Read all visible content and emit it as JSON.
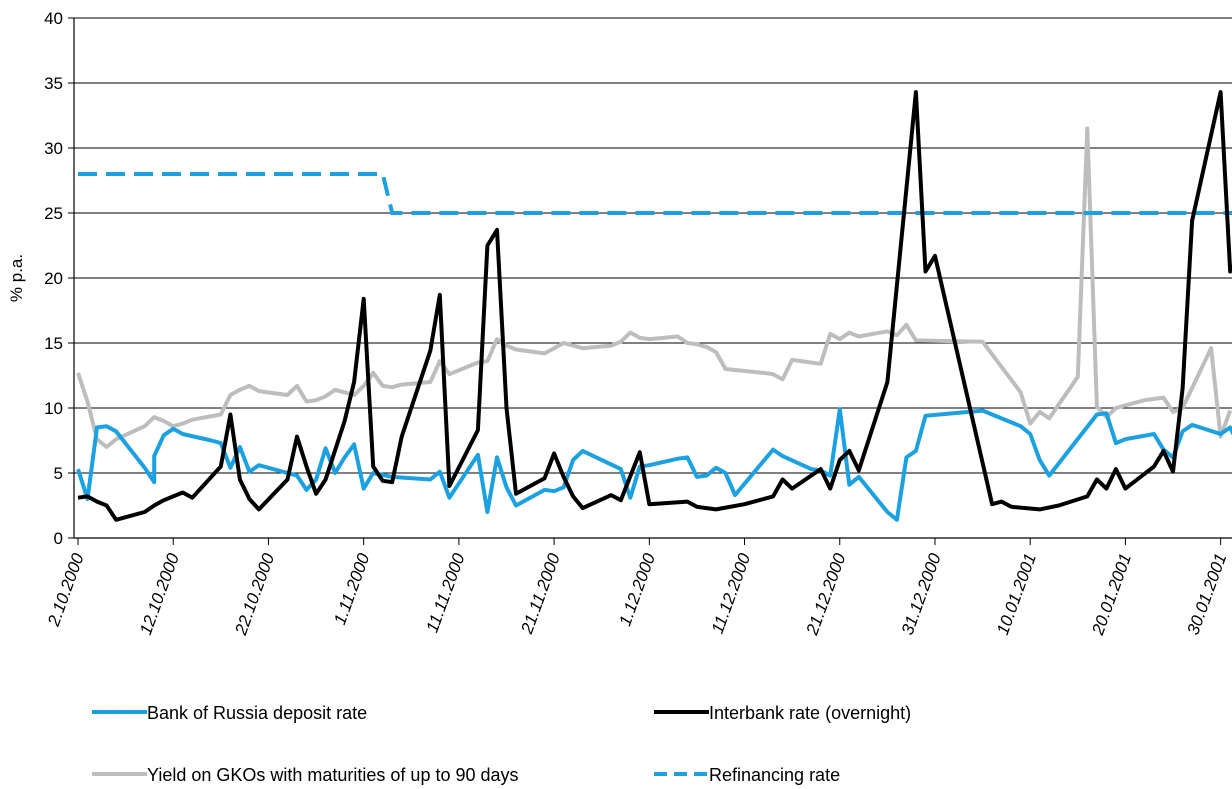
{
  "chart_data": {
    "type": "line",
    "title": "",
    "xlabel": "",
    "ylabel": "% p.a.",
    "ylim": [
      0,
      40
    ],
    "yticks": [
      0,
      5,
      10,
      15,
      20,
      25,
      30,
      35,
      40
    ],
    "xlim": [
      "2.10.2000",
      "31.01.2001"
    ],
    "xticks": [
      {
        "x": "2.10.2000",
        "label": "2.10.2000"
      },
      {
        "x": "12.10.2000",
        "label": "12.10.2000"
      },
      {
        "x": "22.10.2000",
        "label": "22.10.2000"
      },
      {
        "x": "1.11.2000",
        "label": "1.11.2000"
      },
      {
        "x": "11.11.2000",
        "label": "11.11.2000"
      },
      {
        "x": "21.11.2000",
        "label": "21.11.2000"
      },
      {
        "x": "1.12.2000",
        "label": "1.12.2000"
      },
      {
        "x": "11.12.2000",
        "label": "11.12.2000"
      },
      {
        "x": "21.12.2000",
        "label": "21.12.2000"
      },
      {
        "x": "31.12.2000",
        "label": "31.12.2000"
      },
      {
        "x": "10.01.2001",
        "label": "10.01.2001"
      },
      {
        "x": "20.01.2001",
        "label": "20.01.2001"
      },
      {
        "x": "30.01.2001",
        "label": "30.01.2001"
      }
    ],
    "grid": "horizontal",
    "legend": "bottom",
    "series": [
      {
        "name": "Bank of Russia deposit rate",
        "color": "#1ba1e2",
        "style": "solid",
        "points": [
          [
            "2.10.2000",
            5.3
          ],
          [
            "3.10.2000",
            3.0
          ],
          [
            "4.10.2000",
            8.5
          ],
          [
            "5.10.2000",
            8.6
          ],
          [
            "6.10.2000",
            8.2
          ],
          [
            "9.10.2000",
            5.4
          ],
          [
            "10.10.2000",
            4.3
          ],
          [
            "10.10.2000",
            6.3
          ],
          [
            "11.10.2000",
            7.9
          ],
          [
            "12.10.2000",
            8.4
          ],
          [
            "13.10.2000",
            8.0
          ],
          [
            "16.10.2000",
            7.5
          ],
          [
            "17.10.2000",
            7.3
          ],
          [
            "18.10.2000",
            5.4
          ],
          [
            "19.10.2000",
            7.0
          ],
          [
            "20.10.2000",
            5.1
          ],
          [
            "21.10.2000",
            5.6
          ],
          [
            "24.10.2000",
            5.0
          ],
          [
            "25.10.2000",
            4.8
          ],
          [
            "26.10.2000",
            3.7
          ],
          [
            "27.10.2000",
            4.5
          ],
          [
            "28.10.2000",
            6.9
          ],
          [
            "29.10.2000",
            5.0
          ],
          [
            "30.10.2000",
            6.2
          ],
          [
            "31.10.2000",
            7.2
          ],
          [
            "1.11.2000",
            3.8
          ],
          [
            "2.11.2000",
            5.0
          ],
          [
            "4.11.2000",
            4.7
          ],
          [
            "8.11.2000",
            4.5
          ],
          [
            "9.11.2000",
            5.1
          ],
          [
            "10.11.2000",
            3.1
          ],
          [
            "13.11.2000",
            6.4
          ],
          [
            "14.11.2000",
            2.0
          ],
          [
            "15.11.2000",
            6.2
          ],
          [
            "16.11.2000",
            3.9
          ],
          [
            "17.11.2000",
            2.5
          ],
          [
            "20.11.2000",
            3.7
          ],
          [
            "21.11.2000",
            3.6
          ],
          [
            "22.11.2000",
            3.9
          ],
          [
            "23.11.2000",
            6.0
          ],
          [
            "24.11.2000",
            6.7
          ],
          [
            "28.11.2000",
            5.3
          ],
          [
            "29.11.2000",
            3.1
          ],
          [
            "30.11.2000",
            5.5
          ],
          [
            "1.12.2000",
            5.6
          ],
          [
            "4.12.2000",
            6.1
          ],
          [
            "5.12.2000",
            6.2
          ],
          [
            "6.12.2000",
            4.7
          ],
          [
            "7.12.2000",
            4.8
          ],
          [
            "8.12.2000",
            5.4
          ],
          [
            "9.12.2000",
            5.0
          ],
          [
            "10.12.2000",
            3.3
          ],
          [
            "14.12.2000",
            6.8
          ],
          [
            "15.12.2000",
            6.3
          ],
          [
            "18.12.2000",
            5.3
          ],
          [
            "19.12.2000",
            5.2
          ],
          [
            "20.12.2000",
            4.8
          ],
          [
            "21.12.2000",
            9.9
          ],
          [
            "22.12.2000",
            4.1
          ],
          [
            "23.12.2000",
            4.7
          ],
          [
            "26.12.2000",
            2.0
          ],
          [
            "27.12.2000",
            1.4
          ],
          [
            "28.12.2000",
            6.2
          ],
          [
            "29.12.2000",
            6.7
          ],
          [
            "30.12.2000",
            9.4
          ],
          [
            "5.01.2001",
            9.8
          ],
          [
            "9.01.2001",
            8.6
          ],
          [
            "10.01.2001",
            8.0
          ],
          [
            "11.01.2001",
            6.0
          ],
          [
            "12.01.2001",
            4.8
          ],
          [
            "17.01.2001",
            9.5
          ],
          [
            "18.01.2001",
            9.6
          ],
          [
            "19.01.2001",
            7.3
          ],
          [
            "20.01.2001",
            7.6
          ],
          [
            "23.01.2001",
            8.0
          ],
          [
            "24.01.2001",
            6.8
          ],
          [
            "25.01.2001",
            6.2
          ],
          [
            "26.01.2001",
            8.2
          ],
          [
            "27.01.2001",
            8.7
          ],
          [
            "30.01.2001",
            8.0
          ],
          [
            "31.01.2001",
            8.5
          ],
          [
            "1.02.2001",
            7.0
          ]
        ]
      },
      {
        "name": "Interbank rate (overnight)",
        "color": "#000000",
        "style": "solid",
        "points": [
          [
            "2.10.2000",
            3.1
          ],
          [
            "3.10.2000",
            3.2
          ],
          [
            "4.10.2000",
            2.8
          ],
          [
            "5.10.2000",
            2.5
          ],
          [
            "6.10.2000",
            1.4
          ],
          [
            "9.10.2000",
            2.0
          ],
          [
            "10.10.2000",
            2.5
          ],
          [
            "11.10.2000",
            2.9
          ],
          [
            "12.10.2000",
            3.2
          ],
          [
            "13.10.2000",
            3.5
          ],
          [
            "14.10.2000",
            3.1
          ],
          [
            "17.10.2000",
            5.5
          ],
          [
            "18.10.2000",
            9.5
          ],
          [
            "19.10.2000",
            4.5
          ],
          [
            "20.10.2000",
            3.0
          ],
          [
            "21.10.2000",
            2.2
          ],
          [
            "24.10.2000",
            4.5
          ],
          [
            "25.10.2000",
            7.8
          ],
          [
            "26.10.2000",
            5.5
          ],
          [
            "27.10.2000",
            3.4
          ],
          [
            "28.10.2000",
            4.5
          ],
          [
            "30.10.2000",
            9.0
          ],
          [
            "31.10.2000",
            12.0
          ],
          [
            "1.11.2000",
            18.4
          ],
          [
            "2.11.2000",
            5.5
          ],
          [
            "3.11.2000",
            4.4
          ],
          [
            "4.11.2000",
            4.3
          ],
          [
            "5.11.2000",
            7.8
          ],
          [
            "8.11.2000",
            14.4
          ],
          [
            "9.11.2000",
            18.7
          ],
          [
            "10.11.2000",
            4.0
          ],
          [
            "13.11.2000",
            8.3
          ],
          [
            "14.11.2000",
            22.5
          ],
          [
            "15.11.2000",
            23.7
          ],
          [
            "16.11.2000",
            10.0
          ],
          [
            "17.11.2000",
            3.4
          ],
          [
            "20.11.2000",
            4.6
          ],
          [
            "21.11.2000",
            6.5
          ],
          [
            "22.11.2000",
            4.7
          ],
          [
            "23.11.2000",
            3.2
          ],
          [
            "24.11.2000",
            2.3
          ],
          [
            "27.11.2000",
            3.3
          ],
          [
            "28.11.2000",
            2.9
          ],
          [
            "30.11.2000",
            6.6
          ],
          [
            "1.12.2000",
            2.6
          ],
          [
            "5.12.2000",
            2.8
          ],
          [
            "6.12.2000",
            2.4
          ],
          [
            "7.12.2000",
            2.3
          ],
          [
            "8.12.2000",
            2.2
          ],
          [
            "11.12.2000",
            2.6
          ],
          [
            "14.12.2000",
            3.2
          ],
          [
            "15.12.2000",
            4.5
          ],
          [
            "16.12.2000",
            3.8
          ],
          [
            "19.12.2000",
            5.3
          ],
          [
            "20.12.2000",
            3.8
          ],
          [
            "21.12.2000",
            6.0
          ],
          [
            "22.12.2000",
            6.7
          ],
          [
            "23.12.2000",
            5.2
          ],
          [
            "26.12.2000",
            12.0
          ],
          [
            "29.12.2000",
            34.3
          ],
          [
            "30.12.2000",
            20.5
          ],
          [
            "31.12.2000",
            21.7
          ],
          [
            "6.01.2001",
            2.6
          ],
          [
            "7.01.2001",
            2.8
          ],
          [
            "8.01.2001",
            2.4
          ],
          [
            "11.01.2001",
            2.2
          ],
          [
            "13.01.2001",
            2.5
          ],
          [
            "16.01.2001",
            3.2
          ],
          [
            "17.01.2001",
            4.5
          ],
          [
            "18.01.2001",
            3.8
          ],
          [
            "19.01.2001",
            5.3
          ],
          [
            "20.01.2001",
            3.8
          ],
          [
            "23.01.2001",
            5.5
          ],
          [
            "24.01.2001",
            6.7
          ],
          [
            "25.01.2001",
            5.1
          ],
          [
            "26.01.2001",
            11.5
          ],
          [
            "27.01.2001",
            24.4
          ],
          [
            "30.01.2001",
            34.3
          ],
          [
            "31.01.2001",
            20.5
          ],
          [
            "1.02.2001",
            21.7
          ]
        ]
      },
      {
        "name": "Yield on GKOs with maturities of up to 90 days",
        "color": "#bdbdbd",
        "style": "solid",
        "points": [
          [
            "2.10.2000",
            12.7
          ],
          [
            "3.10.2000",
            10.5
          ],
          [
            "4.10.2000",
            7.6
          ],
          [
            "5.10.2000",
            7.0
          ],
          [
            "6.10.2000",
            7.6
          ],
          [
            "9.10.2000",
            8.6
          ],
          [
            "10.10.2000",
            9.3
          ],
          [
            "11.10.2000",
            9.0
          ],
          [
            "12.10.2000",
            8.6
          ],
          [
            "13.10.2000",
            8.8
          ],
          [
            "14.10.2000",
            9.1
          ],
          [
            "17.10.2000",
            9.5
          ],
          [
            "18.10.2000",
            11.0
          ],
          [
            "19.10.2000",
            11.4
          ],
          [
            "20.10.2000",
            11.7
          ],
          [
            "21.10.2000",
            11.3
          ],
          [
            "24.10.2000",
            11.0
          ],
          [
            "25.10.2000",
            11.7
          ],
          [
            "26.10.2000",
            10.5
          ],
          [
            "27.10.2000",
            10.6
          ],
          [
            "28.10.2000",
            10.9
          ],
          [
            "29.10.2000",
            11.4
          ],
          [
            "31.10.2000",
            11.0
          ],
          [
            "1.11.2000",
            11.7
          ],
          [
            "2.11.2000",
            12.7
          ],
          [
            "3.11.2000",
            11.7
          ],
          [
            "4.11.2000",
            11.6
          ],
          [
            "5.11.2000",
            11.8
          ],
          [
            "8.11.2000",
            12.0
          ],
          [
            "9.11.2000",
            13.6
          ],
          [
            "10.11.2000",
            12.6
          ],
          [
            "13.11.2000",
            13.5
          ],
          [
            "14.11.2000",
            13.6
          ],
          [
            "15.11.2000",
            15.3
          ],
          [
            "16.11.2000",
            14.8
          ],
          [
            "17.11.2000",
            14.5
          ],
          [
            "20.11.2000",
            14.2
          ],
          [
            "21.11.2000",
            14.6
          ],
          [
            "22.11.2000",
            15.0
          ],
          [
            "23.11.2000",
            14.8
          ],
          [
            "24.11.2000",
            14.6
          ],
          [
            "27.11.2000",
            14.8
          ],
          [
            "28.11.2000",
            15.1
          ],
          [
            "29.11.2000",
            15.8
          ],
          [
            "30.11.2000",
            15.4
          ],
          [
            "1.12.2000",
            15.3
          ],
          [
            "4.12.2000",
            15.5
          ],
          [
            "5.12.2000",
            15.0
          ],
          [
            "6.12.2000",
            14.9
          ],
          [
            "7.12.2000",
            14.7
          ],
          [
            "8.12.2000",
            14.3
          ],
          [
            "9.12.2000",
            13.0
          ],
          [
            "13.12.2000",
            12.7
          ],
          [
            "14.12.2000",
            12.6
          ],
          [
            "15.12.2000",
            12.2
          ],
          [
            "16.12.2000",
            13.7
          ],
          [
            "19.12.2000",
            13.4
          ],
          [
            "20.12.2000",
            15.7
          ],
          [
            "21.12.2000",
            15.3
          ],
          [
            "22.12.2000",
            15.8
          ],
          [
            "23.12.2000",
            15.5
          ],
          [
            "26.12.2000",
            15.9
          ],
          [
            "27.12.2000",
            15.6
          ],
          [
            "28.12.2000",
            16.4
          ],
          [
            "29.12.2000",
            15.2
          ],
          [
            "5.01.2001",
            15.1
          ],
          [
            "9.01.2001",
            11.2
          ],
          [
            "10.01.2001",
            8.8
          ],
          [
            "11.01.2001",
            9.7
          ],
          [
            "12.01.2001",
            9.2
          ],
          [
            "15.01.2001",
            12.4
          ],
          [
            "16.01.2001",
            31.5
          ],
          [
            "17.01.2001",
            10.1
          ],
          [
            "18.01.2001",
            9.3
          ],
          [
            "19.01.2001",
            10.0
          ],
          [
            "22.01.2001",
            10.6
          ],
          [
            "23.01.2001",
            10.7
          ],
          [
            "24.01.2001",
            10.8
          ],
          [
            "25.01.2001",
            9.7
          ],
          [
            "26.01.2001",
            10.0
          ],
          [
            "29.01.2001",
            14.6
          ],
          [
            "30.01.2001",
            7.8
          ],
          [
            "31.01.2001",
            9.8
          ]
        ]
      },
      {
        "name": "Refinancing rate",
        "color": "#1ba1e2",
        "style": "dashed",
        "points": [
          [
            "2.10.2000",
            28
          ],
          [
            "3.11.2000",
            28
          ],
          [
            "4.11.2000",
            25
          ],
          [
            "1.02.2001",
            25
          ]
        ]
      }
    ]
  }
}
